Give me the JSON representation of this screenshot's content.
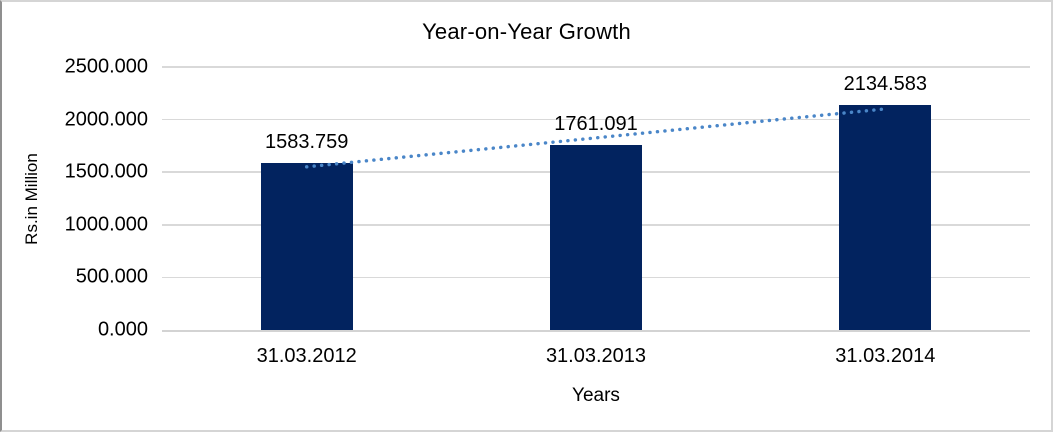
{
  "chart_data": {
    "type": "bar",
    "title": "Year-on-Year Growth",
    "xlabel": "Years",
    "ylabel": "Rs.in Million",
    "categories": [
      "31.03.2012",
      "31.03.2013",
      "31.03.2014"
    ],
    "values": [
      1583.759,
      1761.091,
      2134.583
    ],
    "value_labels": [
      "1583.759",
      "1761.091",
      "2134.583"
    ],
    "yticks": [
      "0.000",
      "500.000",
      "1000.000",
      "1500.000",
      "2000.000",
      "2500.000"
    ],
    "ylim": [
      0,
      2500
    ],
    "grid": true,
    "legend": false,
    "bar_color": "#02235f",
    "trendline_color": "#4a86c8",
    "gridline_color": "#d9d9d9",
    "trendline_style": "dotted-linear"
  }
}
